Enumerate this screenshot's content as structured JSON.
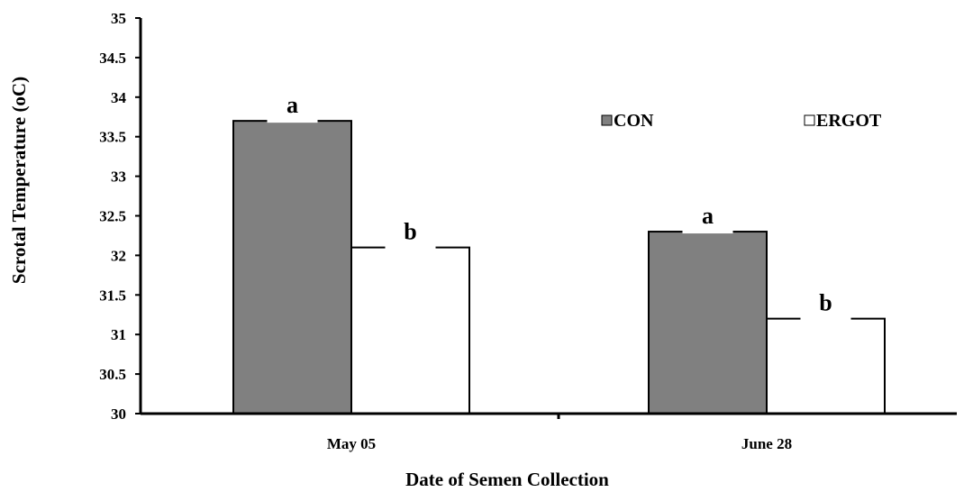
{
  "chart_data": {
    "type": "bar",
    "title": "",
    "xlabel": "Date of Semen Collection",
    "ylabel": "Scrotal Temperature (oC)",
    "ylim": [
      30,
      35
    ],
    "yticks": [
      "30",
      "30.5",
      "31",
      "31.5",
      "32",
      "32.5",
      "33",
      "33.5",
      "34",
      "34.5",
      "35"
    ],
    "categories": [
      "May 05",
      "June 28"
    ],
    "series": [
      {
        "name": "CON",
        "values": [
          33.7,
          32.3
        ],
        "letters": [
          "a",
          "a"
        ],
        "color": "#808080"
      },
      {
        "name": "ERGOT",
        "values": [
          32.1,
          31.2
        ],
        "letters": [
          "b",
          "b"
        ],
        "color": "#ffffff"
      }
    ],
    "legend_position": "top-right",
    "grid": false
  }
}
